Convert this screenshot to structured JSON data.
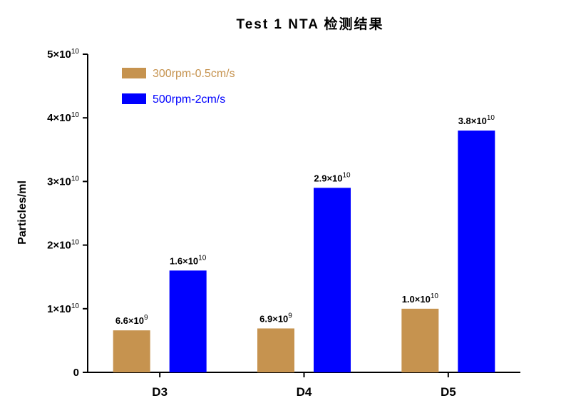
{
  "chart_data": {
    "type": "bar",
    "title": "Test 1 NTA 检测结果",
    "xlabel": "",
    "ylabel": "Particles/ml",
    "categories": [
      "D3",
      "D4",
      "D5"
    ],
    "ylim": [
      0,
      50000000000
    ],
    "yticks": [
      {
        "value": 0,
        "mant": "0",
        "exp": ""
      },
      {
        "value": 10000000000,
        "mant": "1×10",
        "exp": "10"
      },
      {
        "value": 20000000000,
        "mant": "2×10",
        "exp": "10"
      },
      {
        "value": 30000000000,
        "mant": "3×10",
        "exp": "10"
      },
      {
        "value": 40000000000,
        "mant": "4×10",
        "exp": "10"
      },
      {
        "value": 50000000000,
        "mant": "5×10",
        "exp": "10"
      }
    ],
    "legend_position": "top-left",
    "grid": false,
    "series": [
      {
        "name": "300rpm-0.5cm/s",
        "color": "#C6934F",
        "values": [
          6600000000,
          6900000000,
          10000000000
        ],
        "labels": [
          {
            "mant": "6.6×10",
            "exp": "9"
          },
          {
            "mant": "6.9×10",
            "exp": "9"
          },
          {
            "mant": "1.0×10",
            "exp": "10"
          }
        ]
      },
      {
        "name": "500rpm-2cm/s",
        "color": "#0000FF",
        "values": [
          16000000000,
          29000000000,
          38000000000
        ],
        "labels": [
          {
            "mant": "1.6×10",
            "exp": "10"
          },
          {
            "mant": "2.9×10",
            "exp": "10"
          },
          {
            "mant": "3.8×10",
            "exp": "10"
          }
        ]
      }
    ]
  }
}
